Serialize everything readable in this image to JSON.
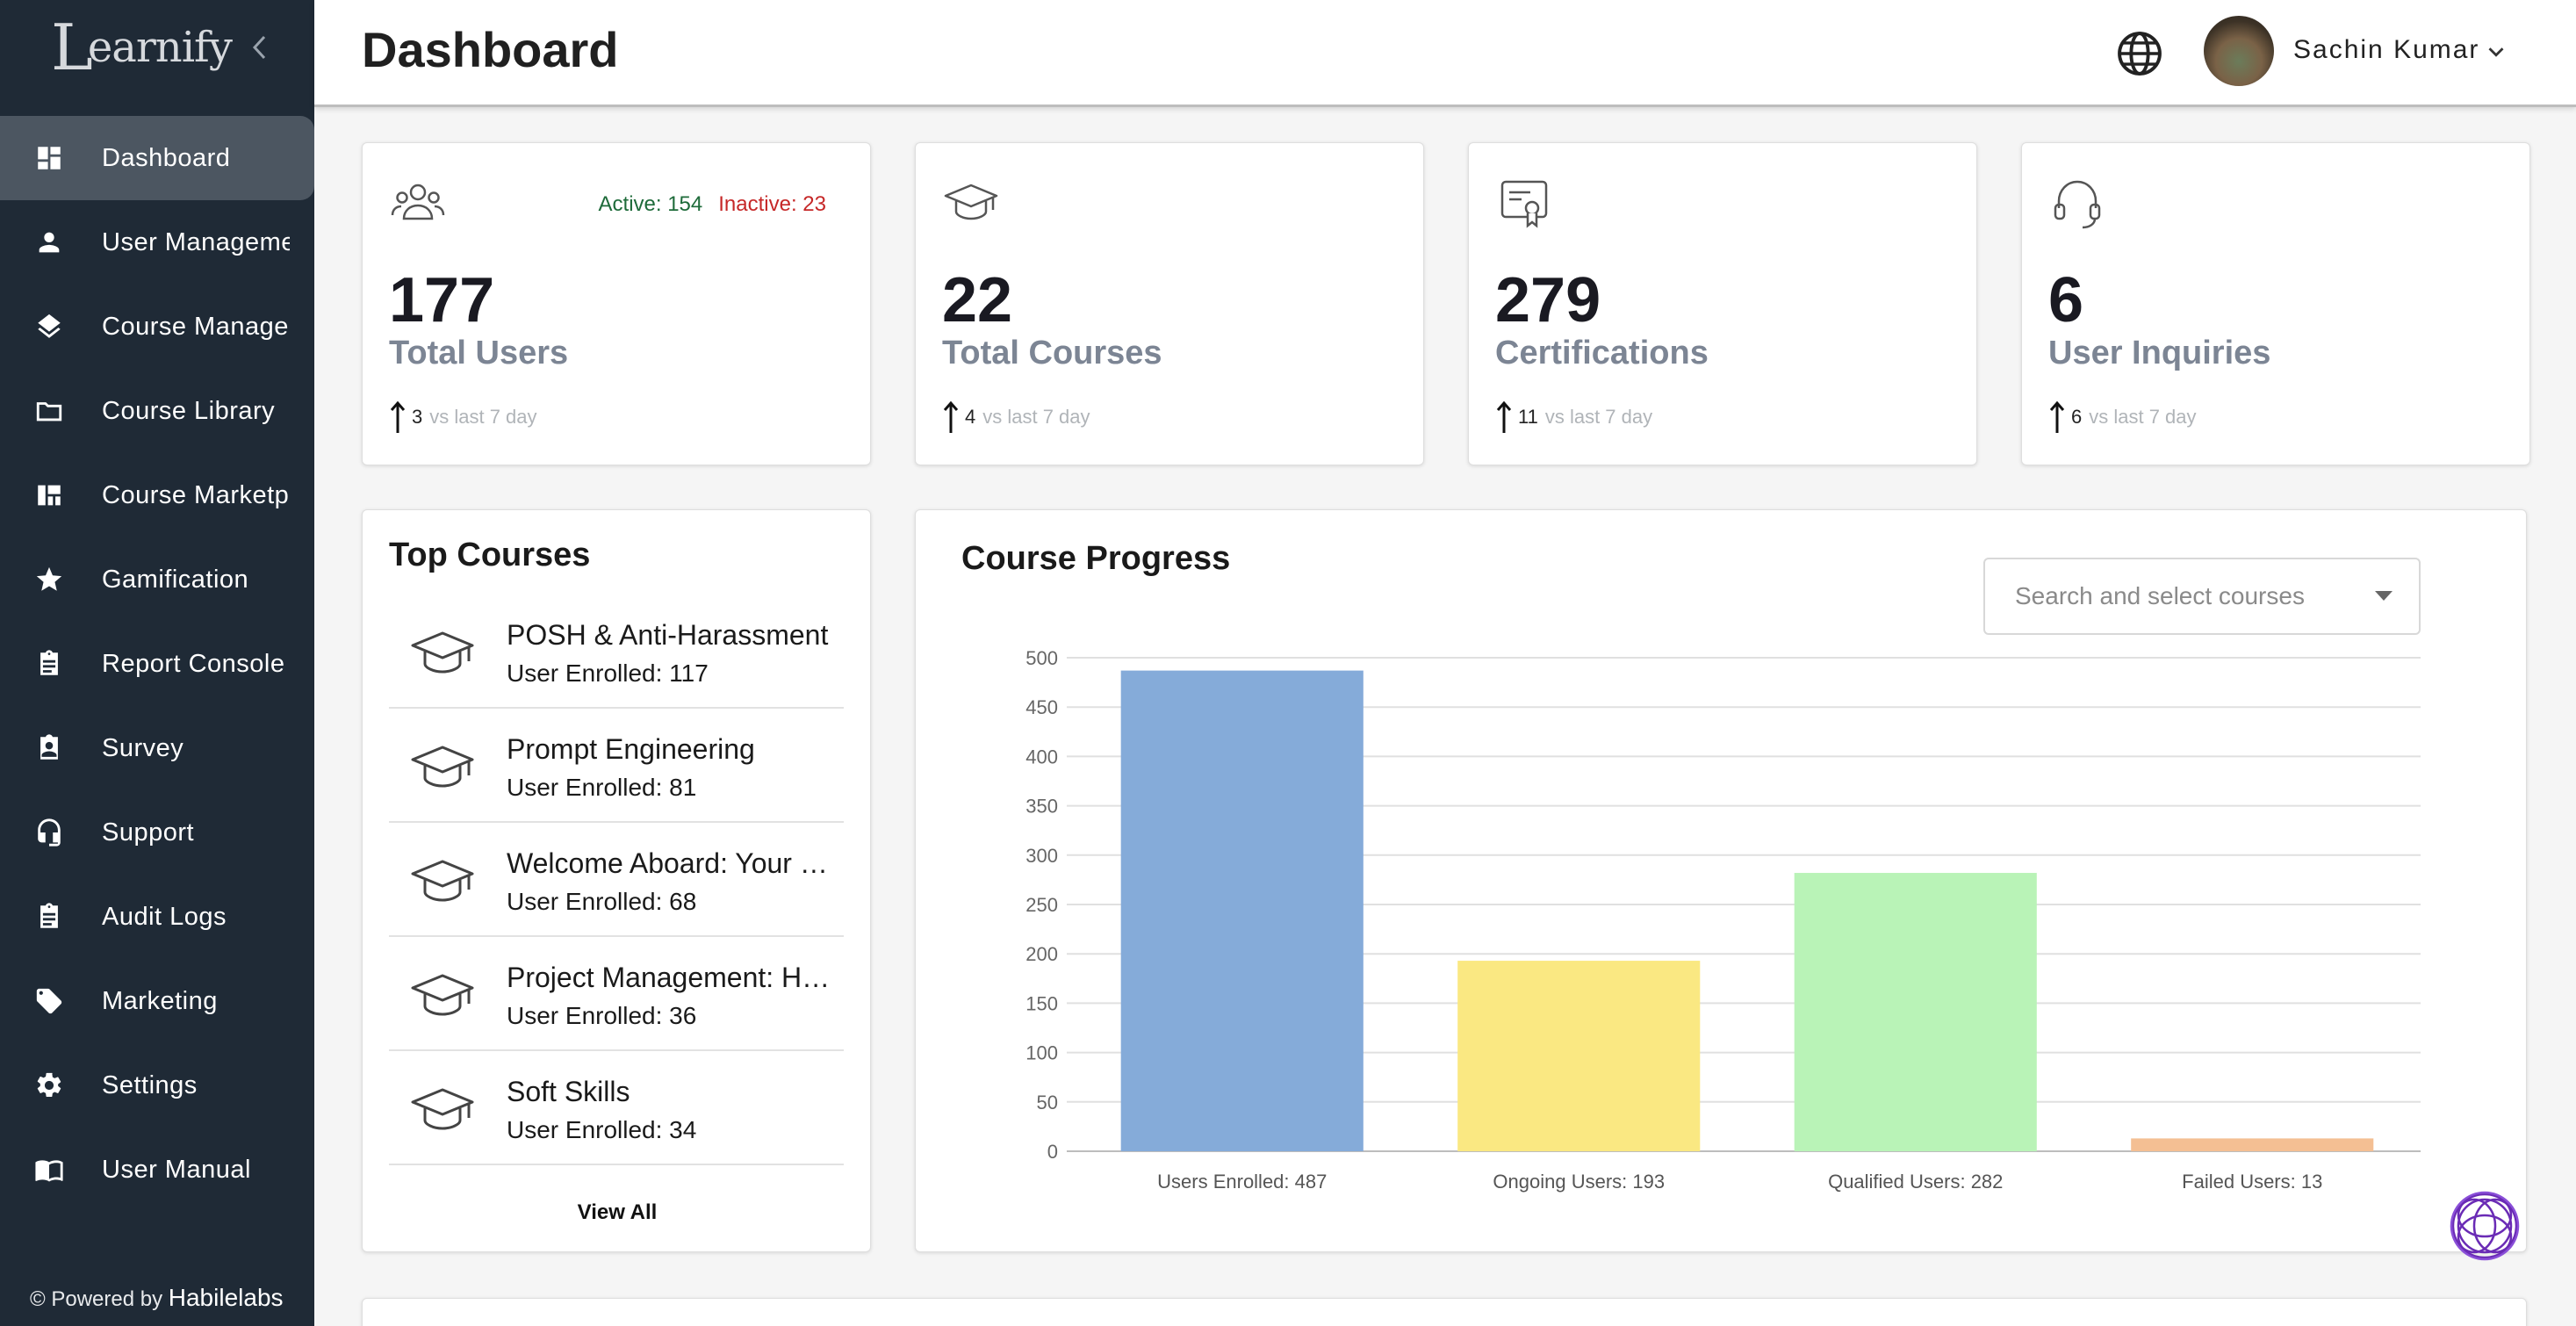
{
  "brand": {
    "name": "earnify",
    "initial": "L"
  },
  "sidebar": {
    "items": [
      {
        "label": "Dashboard",
        "icon": "dashboard-icon",
        "active": true
      },
      {
        "label": "User Management",
        "icon": "person-icon"
      },
      {
        "label": "Course Management",
        "icon": "layers-icon"
      },
      {
        "label": "Course Library",
        "icon": "folder-icon"
      },
      {
        "label": "Course Marketplace",
        "icon": "marketplace-icon"
      },
      {
        "label": "Gamification",
        "icon": "star-icon"
      },
      {
        "label": "Report Console",
        "icon": "clipboard-icon"
      },
      {
        "label": "Survey",
        "icon": "contact-clipboard-icon"
      },
      {
        "label": "Support",
        "icon": "headset-icon"
      },
      {
        "label": "Audit Logs",
        "icon": "clipboard-list-icon"
      },
      {
        "label": "Marketing",
        "icon": "tag-icon"
      },
      {
        "label": "Settings",
        "icon": "gear-icon"
      },
      {
        "label": "User Manual",
        "icon": "book-icon"
      }
    ],
    "powered_prefix": "© Powered by",
    "powered_brand": "Habilelabs"
  },
  "header": {
    "title": "Dashboard",
    "user_name": "Sachin Kumar"
  },
  "stats": [
    {
      "value": "177",
      "label": "Total Users",
      "delta": "3",
      "delta_text": "vs last 7 day",
      "icon": "users-group-icon",
      "active_text": "Active: 154",
      "inactive_text": "Inactive: 23"
    },
    {
      "value": "22",
      "label": "Total Courses",
      "delta": "4",
      "delta_text": "vs last 7 day",
      "icon": "graduation-cap-icon"
    },
    {
      "value": "279",
      "label": "Certifications",
      "delta": "11",
      "delta_text": "vs last 7 day",
      "icon": "certificate-icon"
    },
    {
      "value": "6",
      "label": "User Inquiries",
      "delta": "6",
      "delta_text": "vs last 7 day",
      "icon": "headset-icon"
    }
  ],
  "top_courses": {
    "title": "Top Courses",
    "items": [
      {
        "name": "POSH & Anti-Harassment",
        "enrolled": "User Enrolled: 117"
      },
      {
        "name": "Prompt Engineering",
        "enrolled": "User Enrolled: 81"
      },
      {
        "name": "Welcome Aboard: Your Onboarding",
        "enrolled": "User Enrolled: 68"
      },
      {
        "name": "Project Management: Handbook",
        "enrolled": "User Enrolled: 36"
      },
      {
        "name": "Soft Skills",
        "enrolled": "User Enrolled: 34"
      }
    ],
    "view_all": "View All"
  },
  "course_progress": {
    "title": "Course Progress",
    "search_placeholder": "Search and select courses"
  },
  "chart_data": {
    "type": "bar",
    "categories": [
      "Users Enrolled: 487",
      "Ongoing Users: 193",
      "Qualified Users: 282",
      "Failed Users: 13"
    ],
    "values": [
      487,
      193,
      282,
      13
    ],
    "colors": [
      "#85abd9",
      "#fae882",
      "#b9f3b7",
      "#f4bf93"
    ],
    "ylim": [
      0,
      500
    ],
    "yticks": [
      0,
      50,
      100,
      150,
      200,
      250,
      300,
      350,
      400,
      450,
      500
    ],
    "grid": true
  }
}
